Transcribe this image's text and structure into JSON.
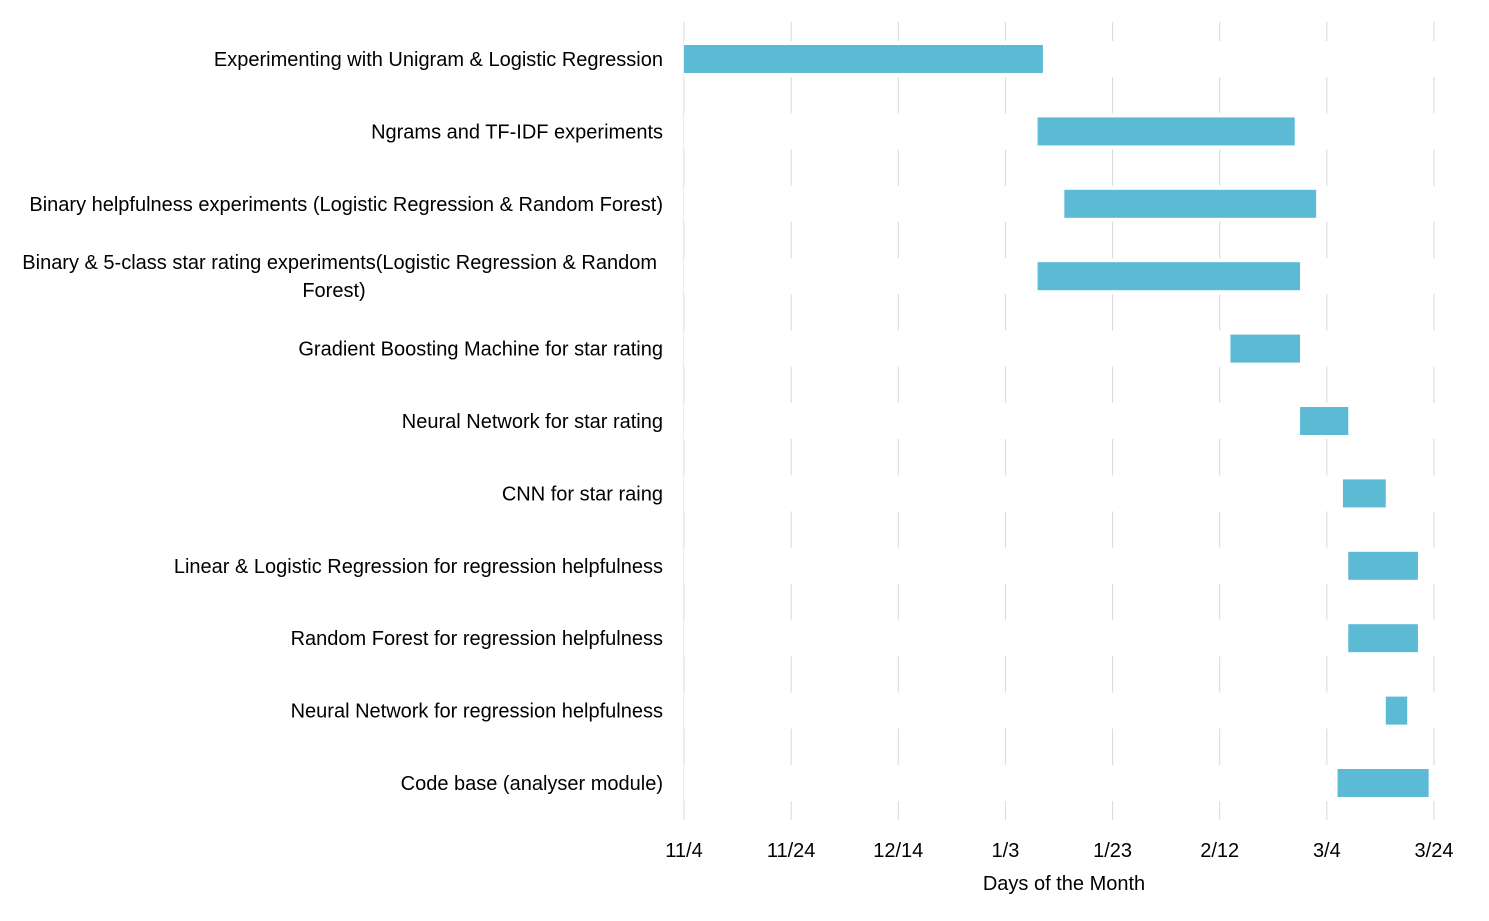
{
  "chart_data": {
    "type": "gantt",
    "title": "",
    "xlabel": "Days of the Month",
    "ylabel": "",
    "grid": true,
    "legend": "none",
    "bar_color": "#5DBAD5",
    "grid_color": "#D9D9D9",
    "x_ticks": [
      "11/4",
      "11/24",
      "12/14",
      "1/3",
      "1/23",
      "2/12",
      "3/4",
      "3/24"
    ],
    "xlim": [
      "11/4",
      "3/24"
    ],
    "tasks": [
      {
        "label": "Experimenting with Unigram & Logistic Regression",
        "start": "11/4",
        "end": "1/10"
      },
      {
        "label": "Ngrams and TF-IDF experiments",
        "start": "1/9",
        "end": "2/26"
      },
      {
        "label": "Binary helpfulness experiments (Logistic Regression & Random Forest)",
        "start": "1/14",
        "end": "3/2"
      },
      {
        "label": "Binary & 5-class star rating experiments(Logistic Regression & Random Forest)",
        "label_lines": [
          "Binary & 5-class star rating experiments(Logistic Regression & Random",
          "Forest)"
        ],
        "start": "1/9",
        "end": "2/27"
      },
      {
        "label": "Gradient Boosting Machine for star rating",
        "start": "2/14",
        "end": "2/27"
      },
      {
        "label": "Neural Network for star rating",
        "start": "2/27",
        "end": "3/8"
      },
      {
        "label": "CNN for star raing",
        "start": "3/7",
        "end": "3/15"
      },
      {
        "label": "Linear & Logistic Regression for regression helpfulness",
        "start": "3/8",
        "end": "3/21"
      },
      {
        "label": "Random Forest for regression helpfulness",
        "start": "3/8",
        "end": "3/21"
      },
      {
        "label": "Neural Network for regression helpfulness",
        "start": "3/15",
        "end": "3/19"
      },
      {
        "label": "Code base (analyser module)",
        "start": "3/6",
        "end": "3/23"
      }
    ]
  }
}
